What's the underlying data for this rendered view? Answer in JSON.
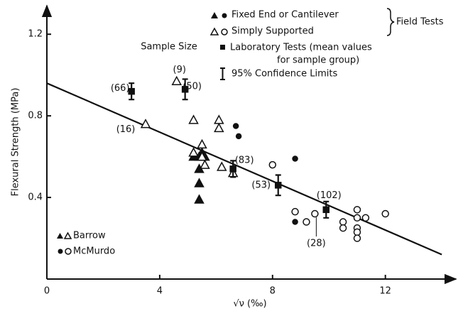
{
  "chart_data": {
    "type": "scatter",
    "xlabel": "√ν (‰)",
    "ylabel": "Flexural Strength (MPa)",
    "xlim": [
      0,
      14.5
    ],
    "ylim": [
      0,
      1.34
    ],
    "xticks": [
      0,
      4,
      8,
      12
    ],
    "yticks": [
      0.4,
      0.8,
      1.2
    ],
    "annotations": [
      "Sample Size"
    ],
    "legend": {
      "entries": [
        "Fixed End or Cantilever",
        "Simply Supported",
        "Laboratory Tests (mean values",
        "for sample group)",
        "95% Confidence Limits"
      ],
      "group": "Field Tests",
      "sites": [
        "Barrow",
        "McMurdo"
      ]
    },
    "fit": {
      "x": [
        0,
        14
      ],
      "y": [
        0.96,
        0.12
      ]
    },
    "series": [
      {
        "marker": "triangle",
        "filled": true,
        "color": "#111",
        "x": [
          5.2,
          5.4,
          5.5,
          5.4,
          5.4,
          5.4,
          5.6
        ],
        "values": [
          0.6,
          0.6,
          0.62,
          0.54,
          0.47,
          0.39,
          0.6
        ]
      },
      {
        "marker": "triangle",
        "filled": false,
        "color": "#111",
        "x": [
          3.5,
          4.6,
          5.2,
          5.2,
          5.5,
          5.6,
          6.1,
          6.1,
          6.2,
          6.6,
          5.5
        ],
        "values": [
          0.76,
          0.97,
          0.78,
          0.62,
          0.66,
          0.56,
          0.78,
          0.74,
          0.55,
          0.52,
          0.6
        ],
        "point_labels": [
          "(16)",
          "(9)",
          null,
          null,
          null,
          null,
          null,
          null,
          null,
          null,
          null
        ]
      },
      {
        "marker": "circle",
        "filled": true,
        "color": "#111",
        "x": [
          6.7,
          6.8,
          8.8,
          8.8
        ],
        "values": [
          0.75,
          0.7,
          0.59,
          0.28
        ]
      },
      {
        "marker": "circle",
        "filled": false,
        "color": "#111",
        "x": [
          8.0,
          8.8,
          9.2,
          9.5,
          10.5,
          10.5,
          11,
          11,
          11,
          11,
          11,
          11.3,
          12
        ],
        "values": [
          0.56,
          0.33,
          0.28,
          0.32,
          0.28,
          0.25,
          0.34,
          0.3,
          0.25,
          0.23,
          0.2,
          0.3,
          0.32
        ],
        "point_labels": [
          null,
          null,
          null,
          "(28)",
          null,
          null,
          null,
          null,
          null,
          null,
          null,
          null,
          null
        ]
      },
      {
        "marker": "square",
        "filled": true,
        "color": "#111",
        "x": [
          3.0,
          4.9,
          6.6,
          8.2,
          9.9
        ],
        "values": [
          0.92,
          0.93,
          0.54,
          0.46,
          0.34
        ],
        "errors": [
          0.04,
          0.05,
          0.04,
          0.05,
          0.04
        ],
        "point_labels": [
          "(66)",
          "(50)",
          "(83)",
          "(53)",
          "(102)"
        ]
      }
    ]
  }
}
